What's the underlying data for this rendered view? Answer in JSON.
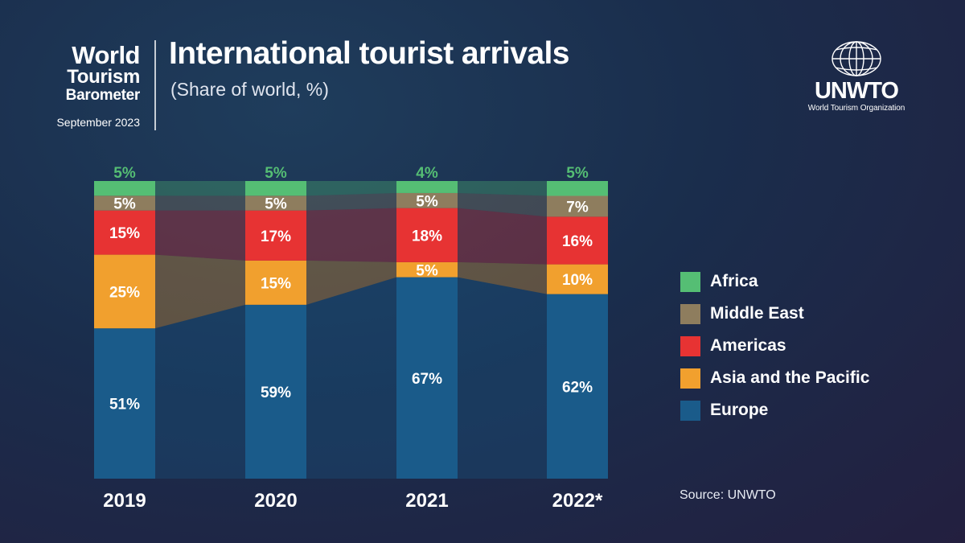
{
  "brand": {
    "line1": "World",
    "line2": "Tourism",
    "line3": "Barometer",
    "date": "September 2023"
  },
  "logo": {
    "name": "UNWTO",
    "org": "World Tourism Organization",
    "icon": "globe-icon"
  },
  "source": "Source: UNWTO",
  "colors": {
    "Europe": "#1a5b8a",
    "Asia and the Pacific": "#f1a02e",
    "Americas": "#e73333",
    "Middle East": "#8e7d5e",
    "Africa": "#55be74"
  },
  "chart_data": {
    "type": "bar",
    "stacked": true,
    "title": "International tourist arrivals",
    "subtitle": "(Share of world, %)",
    "categories": [
      "2019",
      "2020",
      "2021",
      "2022*"
    ],
    "series": [
      {
        "name": "Europe",
        "values": [
          51,
          59,
          67,
          62
        ],
        "labels": [
          "51%",
          "59%",
          "67%",
          "62%"
        ]
      },
      {
        "name": "Asia and the Pacific",
        "values": [
          25,
          15,
          5,
          10
        ],
        "labels": [
          "25%",
          "15%",
          "5%",
          "10%"
        ]
      },
      {
        "name": "Americas",
        "values": [
          15,
          17,
          18,
          16
        ],
        "labels": [
          "15%",
          "17%",
          "18%",
          "16%"
        ]
      },
      {
        "name": "Middle East",
        "values": [
          5,
          5,
          5,
          7
        ],
        "labels": [
          "5%",
          "5%",
          "5%",
          "7%"
        ]
      },
      {
        "name": "Africa",
        "values": [
          5,
          5,
          4,
          5
        ],
        "labels": [
          "5%",
          "5%",
          "4%",
          "5%"
        ]
      }
    ],
    "legend": [
      "Africa",
      "Middle East",
      "Americas",
      "Asia and the Pacific",
      "Europe"
    ],
    "ylim": [
      0,
      100
    ],
    "xlabel": "",
    "ylabel": ""
  }
}
